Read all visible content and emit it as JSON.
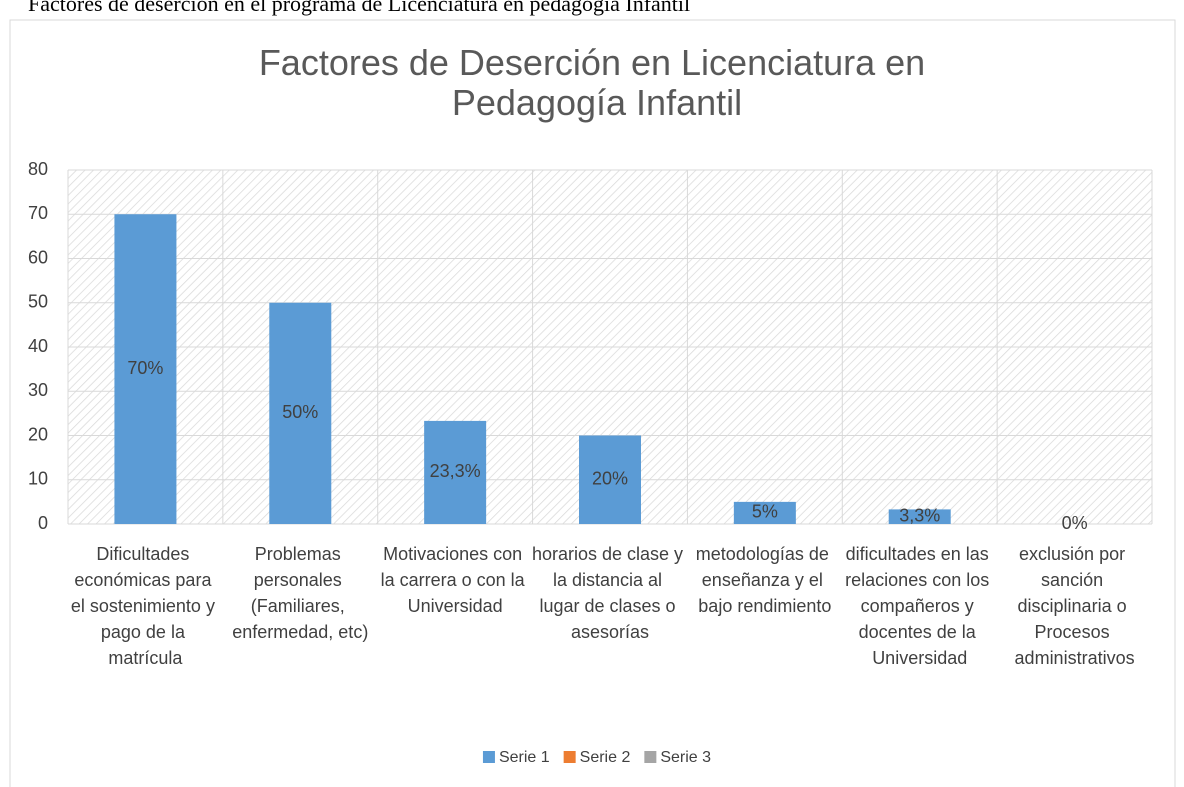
{
  "caption": "Factores de deserción en el programa de Licenciatura en pedagogía Infantil",
  "chart_data": {
    "type": "bar",
    "title": "Factores de Deserción en Licenciatura en Pedagogía Infantil",
    "categories": [
      "Dificultades económicas para el sostenimiento y pago de la matrícula",
      "Problemas personales (Familiares, enfermedad, etc)",
      "Motivaciones con la carrera o con la Universidad",
      "horarios de clase y la distancia al lugar de clases o asesorías",
      "metodologías de enseñanza y el bajo rendimiento",
      "dificultades en las relaciones con los compañeros y docentes de la Universidad",
      "exclusión por sanción disciplinaria o Procesos administrativos"
    ],
    "series": [
      {
        "name": "Serie 1",
        "color": "#5b9bd5",
        "values": [
          70,
          50,
          23.3,
          20,
          5,
          3.3,
          0
        ],
        "value_labels": [
          "70%",
          "50%",
          "23,3%",
          "20%",
          "5%",
          "3,3%",
          "0%"
        ]
      },
      {
        "name": "Serie 2",
        "color": "#ed7d31",
        "values": [
          null,
          null,
          null,
          null,
          null,
          null,
          null
        ]
      },
      {
        "name": "Serie 3",
        "color": "#a5a5a5",
        "values": [
          null,
          null,
          null,
          null,
          null,
          null,
          null
        ]
      }
    ],
    "ylim": [
      0,
      80
    ],
    "yticks": [
      0,
      10,
      20,
      30,
      40,
      50,
      60,
      70,
      80
    ],
    "grid": true,
    "legend": "bottom"
  }
}
